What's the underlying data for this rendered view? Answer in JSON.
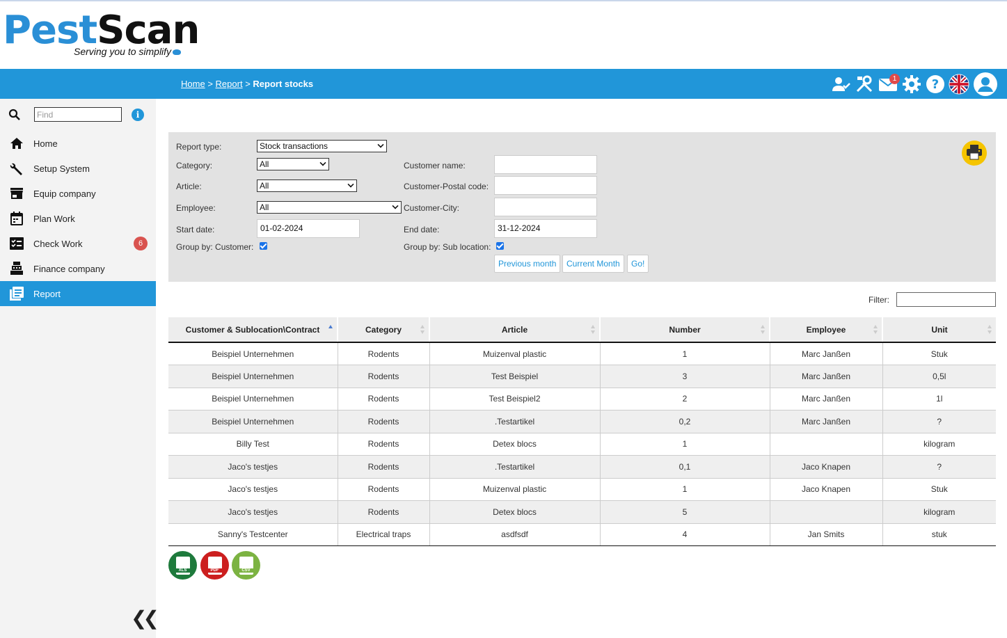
{
  "brand": {
    "name_part1": "Pest",
    "name_part2": "Scan",
    "tagline": "Serving you to simplify"
  },
  "breadcrumb": {
    "home": "Home",
    "report": "Report",
    "current": "Report stocks",
    "sep": ">"
  },
  "topbar": {
    "mail_count": "1"
  },
  "sidebar": {
    "search_placeholder": "Find",
    "items": [
      {
        "label": "Home",
        "icon": "home-icon"
      },
      {
        "label": "Setup System",
        "icon": "wrench-icon"
      },
      {
        "label": "Equip company",
        "icon": "store-icon"
      },
      {
        "label": "Plan Work",
        "icon": "calendar-icon"
      },
      {
        "label": "Check Work",
        "icon": "checklist-icon",
        "badge": "6"
      },
      {
        "label": "Finance company",
        "icon": "register-icon"
      },
      {
        "label": "Report",
        "icon": "report-icon",
        "active": true
      }
    ]
  },
  "form": {
    "report_type_label": "Report type:",
    "report_type_value": "Stock transactions",
    "category_label": "Category:",
    "category_value": "All",
    "article_label": "Article:",
    "article_value": "All",
    "employee_label": "Employee:",
    "employee_value": "All",
    "start_date_label": "Start date:",
    "start_date_value": "01-02-2024",
    "group_customer_label": "Group by: Customer:",
    "customer_name_label": "Customer name:",
    "customer_postal_label": "Customer-Postal code:",
    "customer_city_label": "Customer-City:",
    "end_date_label": "End date:",
    "end_date_value": "31-12-2024",
    "group_subloc_label": "Group by: Sub location:",
    "prev_month": "Previous month",
    "current_month": "Current Month",
    "go": "Go!"
  },
  "filter": {
    "label": "Filter:"
  },
  "table": {
    "headers": [
      "Customer & Sublocation\\Contract",
      "Category",
      "Article",
      "Number",
      "Employee",
      "Unit"
    ],
    "rows": [
      [
        "Beispiel Unternehmen",
        "Rodents",
        "Muizenval plastic",
        "1",
        "Marc Janßen",
        "Stuk"
      ],
      [
        "Beispiel Unternehmen",
        "Rodents",
        "Test Beispiel",
        "3",
        "Marc Janßen",
        "0,5l"
      ],
      [
        "Beispiel Unternehmen",
        "Rodents",
        "Test Beispiel2",
        "2",
        "Marc Janßen",
        "1l"
      ],
      [
        "Beispiel Unternehmen",
        "Rodents",
        ".Testartikel",
        "0,2",
        "Marc Janßen",
        "?"
      ],
      [
        "Billy Test",
        "Rodents",
        "Detex blocs",
        "1",
        "",
        "kilogram"
      ],
      [
        "Jaco's testjes",
        "Rodents",
        ".Testartikel",
        "0,1",
        "Jaco Knapen",
        "?"
      ],
      [
        "Jaco's testjes",
        "Rodents",
        "Muizenval plastic",
        "1",
        "Jaco Knapen",
        "Stuk"
      ],
      [
        "Jaco's testjes",
        "Rodents",
        "Detex blocs",
        "5",
        "",
        "kilogram"
      ],
      [
        "Sanny's Testcenter",
        "Electrical traps",
        "asdfsdf",
        "4",
        "Jan Smits",
        "stuk"
      ]
    ]
  },
  "exports": {
    "xls": "XLS",
    "pdf": "PDF",
    "csv": "CSV"
  },
  "colors": {
    "accent": "#2196d9",
    "badge": "#d9534f"
  }
}
